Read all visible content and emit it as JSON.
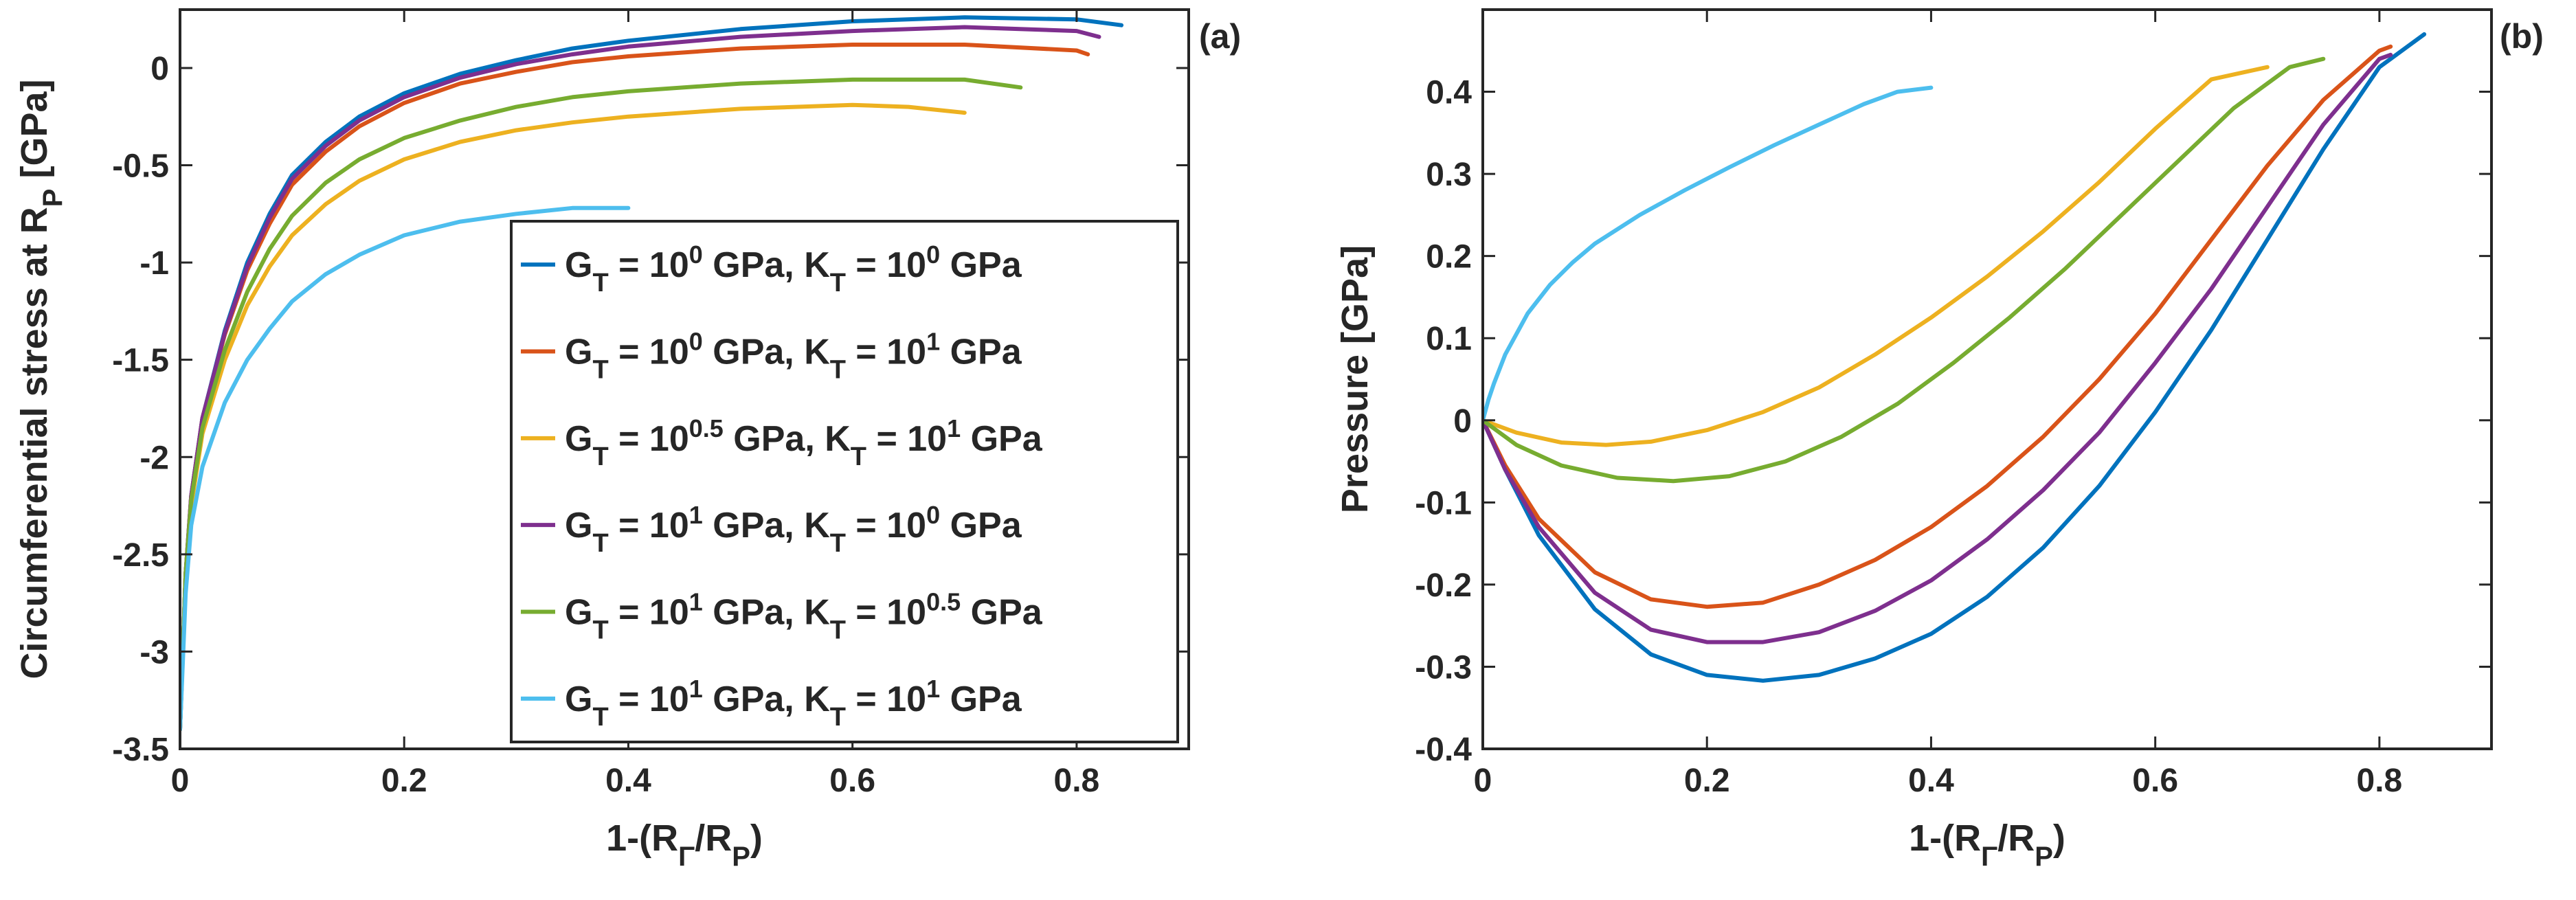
{
  "chart_data": [
    {
      "type": "line",
      "panel_label": "(a)",
      "title": "",
      "xlabel": {
        "main": "1-(R",
        "sub1": "Γ",
        "mid": "/R",
        "sub2": "P",
        "end": ")"
      },
      "ylabel": {
        "main": "Circumferential stress at R",
        "sub": "P",
        "end": " [GPa]"
      },
      "xlim": [
        0,
        0.9
      ],
      "ylim": [
        -3.5,
        0.3
      ],
      "xticks": [
        0,
        0.2,
        0.4,
        0.6,
        0.8
      ],
      "xtick_labels": [
        "0",
        "0.2",
        "0.4",
        "0.6",
        "0.8"
      ],
      "yticks": [
        0,
        -0.5,
        -1,
        -1.5,
        -2,
        -2.5,
        -3,
        -3.5
      ],
      "ytick_labels": [
        "0",
        "-0.5",
        "-1",
        "-1.5",
        "-2",
        "-2.5",
        "-3",
        "-3.5"
      ],
      "grid": false,
      "legend_position": "bottom-right",
      "series": [
        {
          "name": "G_T = 10^0 GPa, K_T = 10^0 GPa",
          "color": "#0072BD",
          "legend": {
            "g_exp": "0",
            "k_exp": "0"
          },
          "x": [
            0,
            0.005,
            0.01,
            0.02,
            0.04,
            0.06,
            0.08,
            0.1,
            0.13,
            0.16,
            0.2,
            0.25,
            0.3,
            0.35,
            0.4,
            0.5,
            0.6,
            0.7,
            0.8,
            0.84
          ],
          "y": [
            -3.4,
            -2.6,
            -2.2,
            -1.8,
            -1.35,
            -1.0,
            -0.75,
            -0.55,
            -0.38,
            -0.25,
            -0.13,
            -0.03,
            0.04,
            0.1,
            0.14,
            0.2,
            0.24,
            0.26,
            0.25,
            0.22
          ]
        },
        {
          "name": "G_T = 10^0 GPa, K_T = 10^1 GPa",
          "color": "#D95319",
          "legend": {
            "g_exp": "0",
            "k_exp": "1"
          },
          "x": [
            0,
            0.005,
            0.01,
            0.02,
            0.04,
            0.06,
            0.08,
            0.1,
            0.13,
            0.16,
            0.2,
            0.25,
            0.3,
            0.35,
            0.4,
            0.5,
            0.6,
            0.7,
            0.8,
            0.81
          ],
          "y": [
            -3.4,
            -2.6,
            -2.2,
            -1.8,
            -1.37,
            -1.04,
            -0.8,
            -0.6,
            -0.43,
            -0.3,
            -0.18,
            -0.08,
            -0.02,
            0.03,
            0.06,
            0.1,
            0.12,
            0.12,
            0.09,
            0.07
          ]
        },
        {
          "name": "G_T = 10^0.5 GPa, K_T = 10^1 GPa",
          "color": "#EDB120",
          "legend": {
            "g_exp": "0.5",
            "k_exp": "1"
          },
          "x": [
            0,
            0.005,
            0.01,
            0.02,
            0.04,
            0.06,
            0.08,
            0.1,
            0.13,
            0.16,
            0.2,
            0.25,
            0.3,
            0.35,
            0.4,
            0.5,
            0.6,
            0.65,
            0.7
          ],
          "y": [
            -3.4,
            -2.6,
            -2.25,
            -1.88,
            -1.5,
            -1.22,
            -1.02,
            -0.86,
            -0.7,
            -0.58,
            -0.47,
            -0.38,
            -0.32,
            -0.28,
            -0.25,
            -0.21,
            -0.19,
            -0.2,
            -0.23
          ]
        },
        {
          "name": "G_T = 10^1 GPa, K_T = 10^0 GPa",
          "color": "#7E2F8E",
          "legend": {
            "g_exp": "1",
            "k_exp": "0"
          },
          "x": [
            0,
            0.005,
            0.01,
            0.02,
            0.04,
            0.06,
            0.08,
            0.1,
            0.13,
            0.16,
            0.2,
            0.25,
            0.3,
            0.35,
            0.4,
            0.5,
            0.6,
            0.7,
            0.8,
            0.82
          ],
          "y": [
            -3.4,
            -2.6,
            -2.2,
            -1.8,
            -1.36,
            -1.02,
            -0.77,
            -0.57,
            -0.4,
            -0.27,
            -0.15,
            -0.05,
            0.02,
            0.07,
            0.11,
            0.16,
            0.19,
            0.21,
            0.19,
            0.16
          ]
        },
        {
          "name": "G_T = 10^1 GPa, K_T = 10^0.5 GPa",
          "color": "#77AC30",
          "legend": {
            "g_exp": "1",
            "k_exp": "0.5"
          },
          "x": [
            0,
            0.005,
            0.01,
            0.02,
            0.04,
            0.06,
            0.08,
            0.1,
            0.13,
            0.16,
            0.2,
            0.25,
            0.3,
            0.35,
            0.4,
            0.5,
            0.6,
            0.7,
            0.75
          ],
          "y": [
            -3.4,
            -2.6,
            -2.22,
            -1.85,
            -1.45,
            -1.15,
            -0.93,
            -0.76,
            -0.59,
            -0.47,
            -0.36,
            -0.27,
            -0.2,
            -0.15,
            -0.12,
            -0.08,
            -0.06,
            -0.06,
            -0.1
          ]
        },
        {
          "name": "G_T = 10^1 GPa, K_T = 10^1 GPa",
          "color": "#4DBEEE",
          "legend": {
            "g_exp": "1",
            "k_exp": "1"
          },
          "x": [
            0,
            0.005,
            0.01,
            0.02,
            0.04,
            0.06,
            0.08,
            0.1,
            0.13,
            0.16,
            0.2,
            0.25,
            0.3,
            0.35,
            0.4
          ],
          "y": [
            -3.4,
            -2.7,
            -2.35,
            -2.05,
            -1.72,
            -1.5,
            -1.34,
            -1.2,
            -1.06,
            -0.96,
            -0.86,
            -0.79,
            -0.75,
            -0.72,
            -0.72
          ]
        }
      ]
    },
    {
      "type": "line",
      "panel_label": "(b)",
      "title": "",
      "xlabel": {
        "main": "1-(R",
        "sub1": "Γ",
        "mid": "/R",
        "sub2": "P",
        "end": ")"
      },
      "ylabel": {
        "main": "Pressure [GPa]"
      },
      "xlim": [
        0,
        0.9
      ],
      "ylim": [
        -0.4,
        0.5
      ],
      "xticks": [
        0,
        0.2,
        0.4,
        0.6,
        0.8
      ],
      "xtick_labels": [
        "0",
        "0.2",
        "0.4",
        "0.6",
        "0.8"
      ],
      "yticks": [
        0.4,
        0.3,
        0.2,
        0.1,
        0,
        -0.1,
        -0.2,
        -0.3,
        -0.4
      ],
      "ytick_labels": [
        "0.4",
        "0.3",
        "0.2",
        "0.1",
        "0",
        "-0.1",
        "-0.2",
        "-0.3",
        "-0.4"
      ],
      "grid": false,
      "series": [
        {
          "name": "G_T = 10^0 GPa, K_T = 10^0 GPa",
          "color": "#0072BD",
          "x": [
            0,
            0.02,
            0.05,
            0.1,
            0.15,
            0.2,
            0.25,
            0.3,
            0.35,
            0.4,
            0.45,
            0.5,
            0.55,
            0.6,
            0.65,
            0.7,
            0.75,
            0.8,
            0.84
          ],
          "y": [
            0,
            -0.06,
            -0.14,
            -0.23,
            -0.285,
            -0.31,
            -0.317,
            -0.31,
            -0.29,
            -0.26,
            -0.215,
            -0.155,
            -0.08,
            0.01,
            0.11,
            0.22,
            0.33,
            0.43,
            0.47
          ]
        },
        {
          "name": "G_T = 10^0 GPa, K_T = 10^1 GPa",
          "color": "#D95319",
          "x": [
            0,
            0.02,
            0.05,
            0.1,
            0.15,
            0.2,
            0.25,
            0.3,
            0.35,
            0.4,
            0.45,
            0.5,
            0.55,
            0.6,
            0.65,
            0.7,
            0.75,
            0.8,
            0.81
          ],
          "y": [
            0,
            -0.055,
            -0.12,
            -0.185,
            -0.218,
            -0.227,
            -0.222,
            -0.2,
            -0.17,
            -0.13,
            -0.08,
            -0.02,
            0.05,
            0.13,
            0.22,
            0.31,
            0.39,
            0.45,
            0.455
          ]
        },
        {
          "name": "G_T = 10^0.5 GPa, K_T = 10^1 GPa",
          "color": "#EDB120",
          "x": [
            0,
            0.03,
            0.07,
            0.11,
            0.15,
            0.2,
            0.25,
            0.3,
            0.35,
            0.4,
            0.45,
            0.5,
            0.55,
            0.6,
            0.65,
            0.7
          ],
          "y": [
            0,
            -0.015,
            -0.027,
            -0.03,
            -0.026,
            -0.012,
            0.01,
            0.04,
            0.08,
            0.125,
            0.175,
            0.23,
            0.29,
            0.355,
            0.415,
            0.43
          ]
        },
        {
          "name": "G_T = 10^1 GPa, K_T = 10^0 GPa",
          "color": "#7E2F8E",
          "x": [
            0,
            0.02,
            0.05,
            0.1,
            0.15,
            0.2,
            0.25,
            0.3,
            0.35,
            0.4,
            0.45,
            0.5,
            0.55,
            0.6,
            0.65,
            0.7,
            0.75,
            0.8,
            0.81
          ],
          "y": [
            0,
            -0.06,
            -0.13,
            -0.21,
            -0.255,
            -0.27,
            -0.27,
            -0.258,
            -0.232,
            -0.195,
            -0.145,
            -0.085,
            -0.015,
            0.07,
            0.16,
            0.26,
            0.36,
            0.44,
            0.445
          ]
        },
        {
          "name": "G_T = 10^1 GPa, K_T = 10^0.5 GPa",
          "color": "#77AC30",
          "x": [
            0,
            0.03,
            0.07,
            0.12,
            0.17,
            0.22,
            0.27,
            0.32,
            0.37,
            0.42,
            0.47,
            0.52,
            0.57,
            0.62,
            0.67,
            0.72,
            0.75
          ],
          "y": [
            0,
            -0.03,
            -0.055,
            -0.07,
            -0.074,
            -0.068,
            -0.05,
            -0.02,
            0.02,
            0.07,
            0.125,
            0.185,
            0.25,
            0.315,
            0.38,
            0.43,
            0.44
          ]
        },
        {
          "name": "G_T = 10^1 GPa, K_T = 10^1 GPa",
          "color": "#4DBEEE",
          "x": [
            0,
            0.005,
            0.01,
            0.02,
            0.04,
            0.06,
            0.08,
            0.1,
            0.14,
            0.18,
            0.22,
            0.26,
            0.3,
            0.34,
            0.37,
            0.4
          ],
          "y": [
            0,
            0.025,
            0.045,
            0.08,
            0.13,
            0.165,
            0.192,
            0.215,
            0.25,
            0.28,
            0.308,
            0.335,
            0.36,
            0.385,
            0.4,
            0.405
          ]
        }
      ]
    }
  ]
}
